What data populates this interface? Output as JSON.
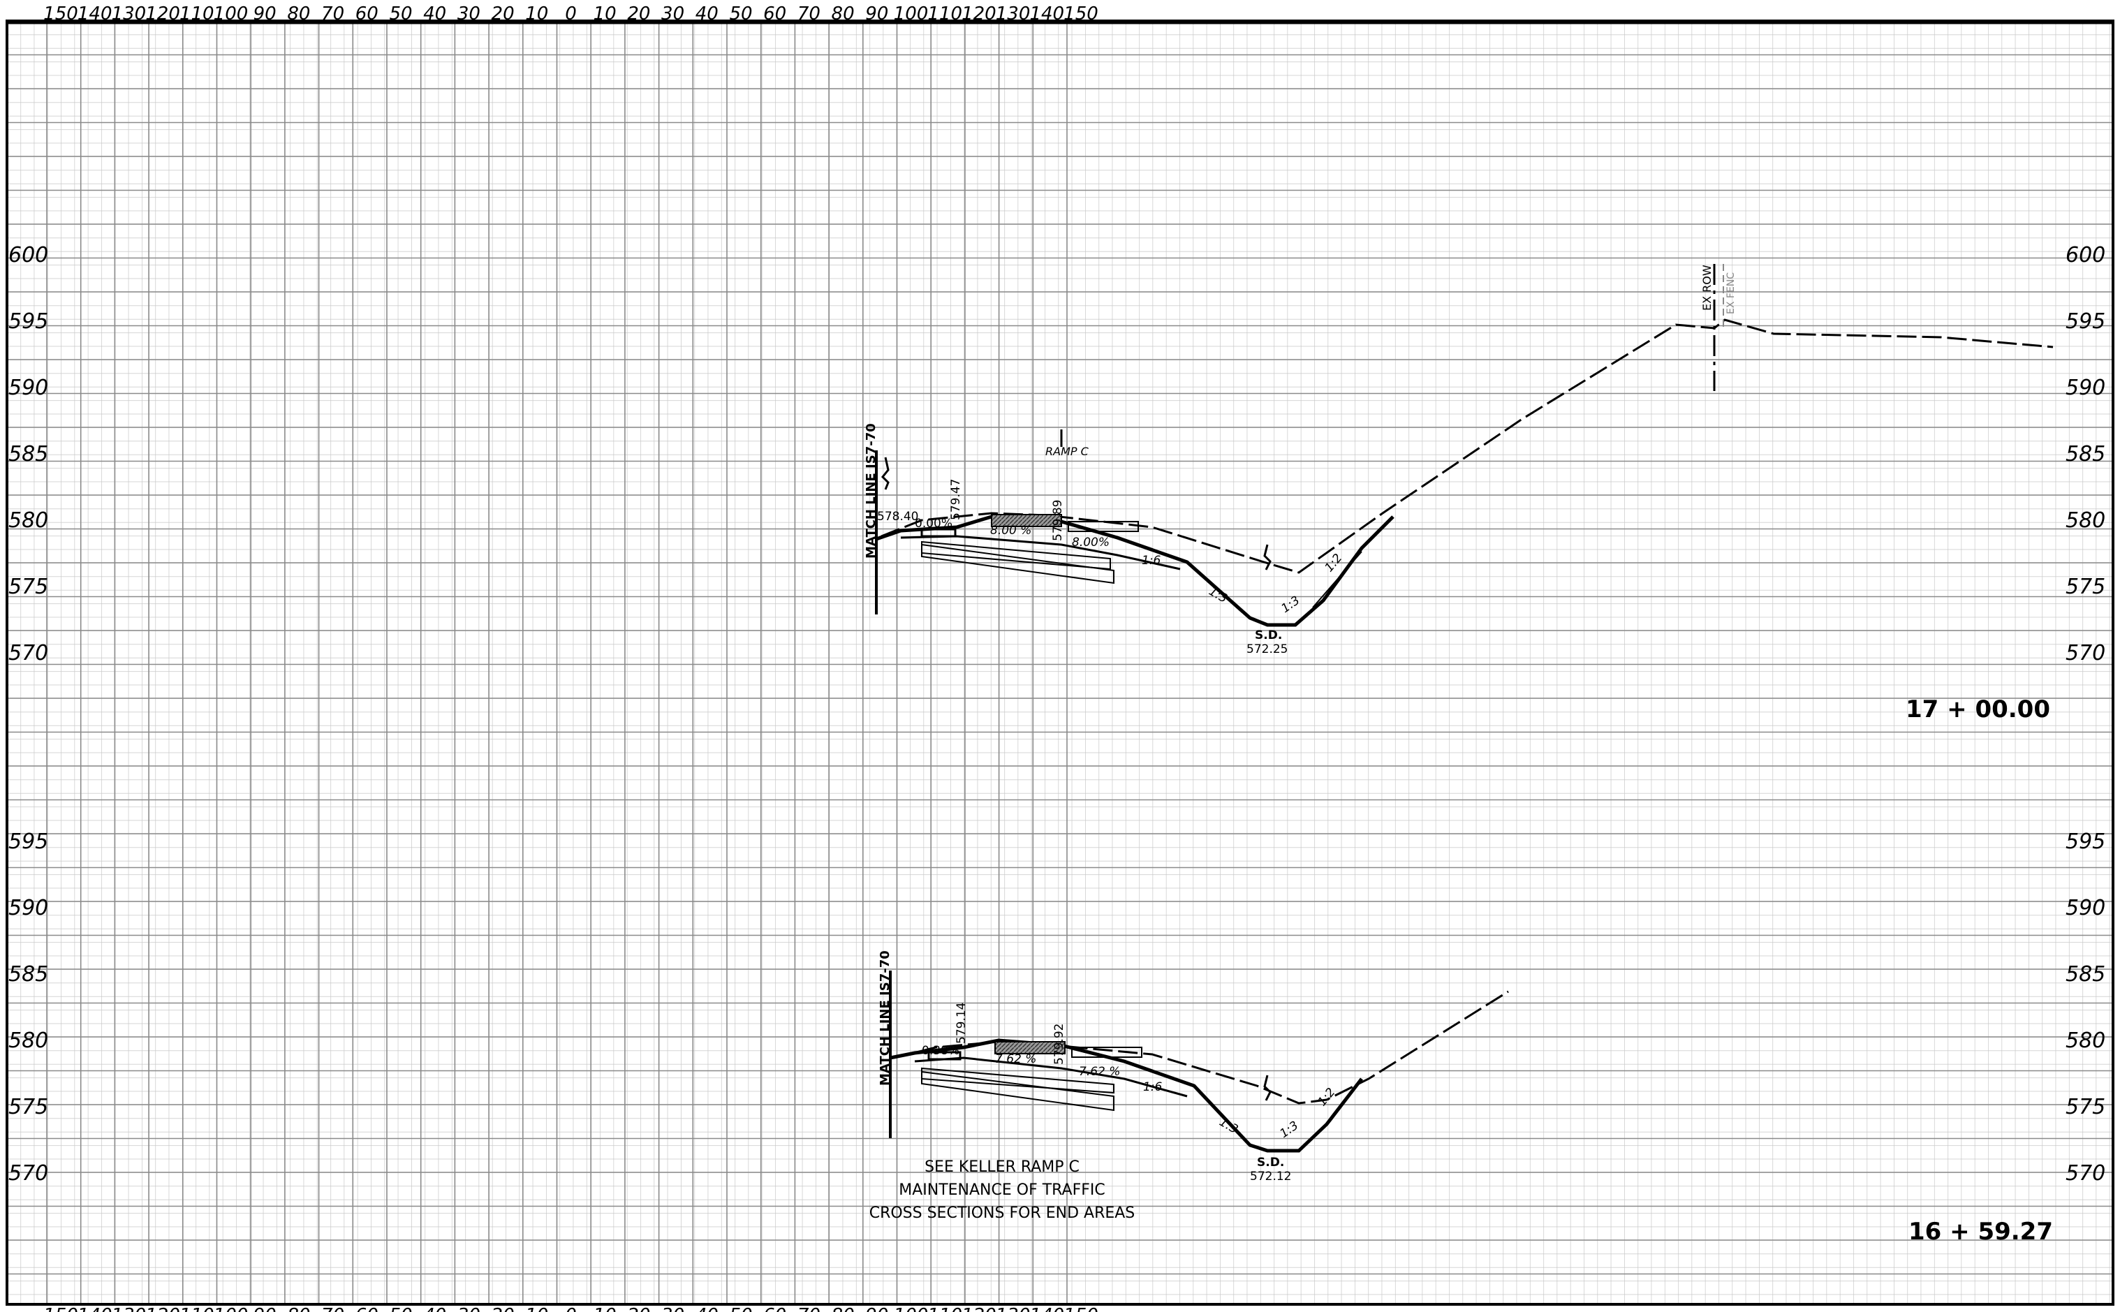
{
  "top_scale": [
    "150",
    "140",
    "130",
    "120",
    "110",
    "100",
    "90",
    "80",
    "70",
    "60",
    "50",
    "40",
    "30",
    "20",
    "10",
    "0",
    "10",
    "20",
    "30",
    "40",
    "50",
    "60",
    "70",
    "80",
    "90",
    "100",
    "110",
    "120",
    "130",
    "140",
    "150"
  ],
  "bottom_scale": [
    "150",
    "140",
    "130",
    "120",
    "110",
    "100",
    "90",
    "80",
    "70",
    "60",
    "50",
    "40",
    "30",
    "20",
    "10",
    "0",
    "10",
    "20",
    "30",
    "40",
    "50",
    "60",
    "70",
    "80",
    "90",
    "100",
    "110",
    "120",
    "130",
    "140",
    "150"
  ],
  "upper_section": {
    "station": "17 + 00.00",
    "elevations": [
      "600",
      "595",
      "590",
      "585",
      "580",
      "575",
      "570"
    ],
    "labels": {
      "match_line": "MATCH LINE IS7-70",
      "ramp": "RAMP C",
      "grade_left": "0.00%",
      "grade_mid": "8.00 %",
      "grade_right": "8.00%",
      "elev_top": "579.47",
      "elev_cl": "579.89",
      "elev_left": "578.40",
      "slope_1": "1:6",
      "slope_2": "1:3",
      "slope_3": "1:3",
      "slope_4": "1:2",
      "sd_label": "S.D.",
      "sd_elev": "572.25",
      "ex_row": "EX ROW",
      "ex_fence": "EX FENC"
    }
  },
  "lower_section": {
    "station": "16 + 59.27",
    "elevations": [
      "595",
      "590",
      "585",
      "580",
      "575",
      "570"
    ],
    "labels": {
      "match_line": "MATCH LINE IS7-70",
      "grade_left": "0.38%",
      "grade_mid": "7.62 %",
      "grade_right": "7.62 %",
      "elev_top": "579.14",
      "elev_cl": "579.92",
      "slope_1": "1:6",
      "slope_2": "1:3",
      "slope_3": "1:3",
      "slope_4": "1:2",
      "sd_label": "S.D.",
      "sd_elev": "572.12"
    },
    "note": [
      "SEE KELLER RAMP C",
      "MAINTENANCE OF TRAFFIC",
      "CROSS SECTIONS FOR END AREAS"
    ]
  },
  "colors": {
    "paper": "#ffffff",
    "grid_fine": "#c8c8c8",
    "grid_major": "#8a8a8a",
    "ink": "#000000"
  }
}
